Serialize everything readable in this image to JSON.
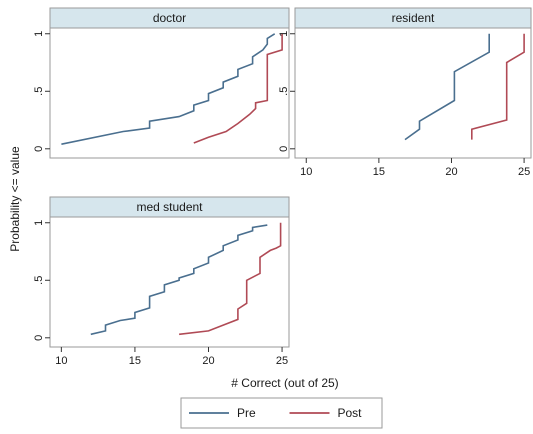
{
  "chart_data": {
    "type": "line",
    "xlabel": "# Correct (out of 25)",
    "ylabel": "Probability <= value",
    "xlim": [
      9.5,
      25.2
    ],
    "ylim": [
      -0.08,
      1.05
    ],
    "xticks": [
      10,
      15,
      20,
      25
    ],
    "yticks": [
      {
        "value": 0,
        "label": "0"
      },
      {
        "value": 0.5,
        "label": ".5"
      },
      {
        "value": 1,
        "label": "1"
      }
    ],
    "legend": {
      "placement": "bottom",
      "entries": [
        "Pre",
        "Post"
      ]
    },
    "colors": {
      "Pre": "#4a6f8f",
      "Post": "#b04a55"
    },
    "panels": [
      {
        "title": "doctor",
        "series": [
          {
            "name": "Pre",
            "points": [
              [
                10,
                0.04
              ],
              [
                14.2,
                0.15
              ],
              [
                16,
                0.18
              ],
              [
                16,
                0.24
              ],
              [
                18,
                0.28
              ],
              [
                19,
                0.33
              ],
              [
                19,
                0.38
              ],
              [
                20,
                0.42
              ],
              [
                20,
                0.48
              ],
              [
                21,
                0.53
              ],
              [
                21,
                0.58
              ],
              [
                22,
                0.63
              ],
              [
                22,
                0.69
              ],
              [
                23,
                0.74
              ],
              [
                23,
                0.8
              ],
              [
                23.7,
                0.86
              ],
              [
                24,
                0.91
              ],
              [
                24,
                0.96
              ],
              [
                24.5,
                1.0
              ]
            ]
          },
          {
            "name": "Post",
            "points": [
              [
                19,
                0.05
              ],
              [
                20,
                0.1
              ],
              [
                21.2,
                0.15
              ],
              [
                22,
                0.22
              ],
              [
                22.8,
                0.3
              ],
              [
                23.2,
                0.35
              ],
              [
                23.2,
                0.4
              ],
              [
                24,
                0.42
              ],
              [
                24,
                0.82
              ],
              [
                25,
                0.86
              ],
              [
                25,
                1.0
              ]
            ]
          }
        ]
      },
      {
        "title": "resident",
        "series": [
          {
            "name": "Pre",
            "points": [
              [
                16.8,
                0.08
              ],
              [
                17.8,
                0.17
              ],
              [
                17.8,
                0.24
              ],
              [
                20.2,
                0.42
              ],
              [
                20.2,
                0.67
              ],
              [
                22.6,
                0.84
              ],
              [
                22.6,
                1.0
              ]
            ]
          },
          {
            "name": "Post",
            "points": [
              [
                21.4,
                0.08
              ],
              [
                21.4,
                0.17
              ],
              [
                23.8,
                0.25
              ],
              [
                23.8,
                0.75
              ],
              [
                25,
                0.84
              ],
              [
                25,
                1.0
              ]
            ]
          }
        ]
      },
      {
        "title": "med student",
        "series": [
          {
            "name": "Pre",
            "points": [
              [
                12,
                0.03
              ],
              [
                13,
                0.06
              ],
              [
                13,
                0.11
              ],
              [
                14,
                0.15
              ],
              [
                15,
                0.17
              ],
              [
                15,
                0.22
              ],
              [
                16,
                0.26
              ],
              [
                16,
                0.36
              ],
              [
                17,
                0.4
              ],
              [
                17,
                0.46
              ],
              [
                18,
                0.5
              ],
              [
                18,
                0.52
              ],
              [
                19,
                0.56
              ],
              [
                19,
                0.6
              ],
              [
                20,
                0.65
              ],
              [
                20,
                0.7
              ],
              [
                21,
                0.76
              ],
              [
                21,
                0.8
              ],
              [
                22,
                0.85
              ],
              [
                22,
                0.89
              ],
              [
                23,
                0.93
              ],
              [
                23,
                0.96
              ],
              [
                24,
                0.98
              ]
            ]
          },
          {
            "name": "Post",
            "points": [
              [
                18,
                0.03
              ],
              [
                20,
                0.06
              ],
              [
                21,
                0.11
              ],
              [
                22,
                0.16
              ],
              [
                22,
                0.25
              ],
              [
                22.6,
                0.3
              ],
              [
                22.6,
                0.5
              ],
              [
                23.5,
                0.56
              ],
              [
                23.5,
                0.7
              ],
              [
                24.2,
                0.76
              ],
              [
                24.6,
                0.78
              ],
              [
                24.9,
                0.8
              ],
              [
                24.9,
                1.0
              ]
            ]
          }
        ]
      }
    ]
  }
}
